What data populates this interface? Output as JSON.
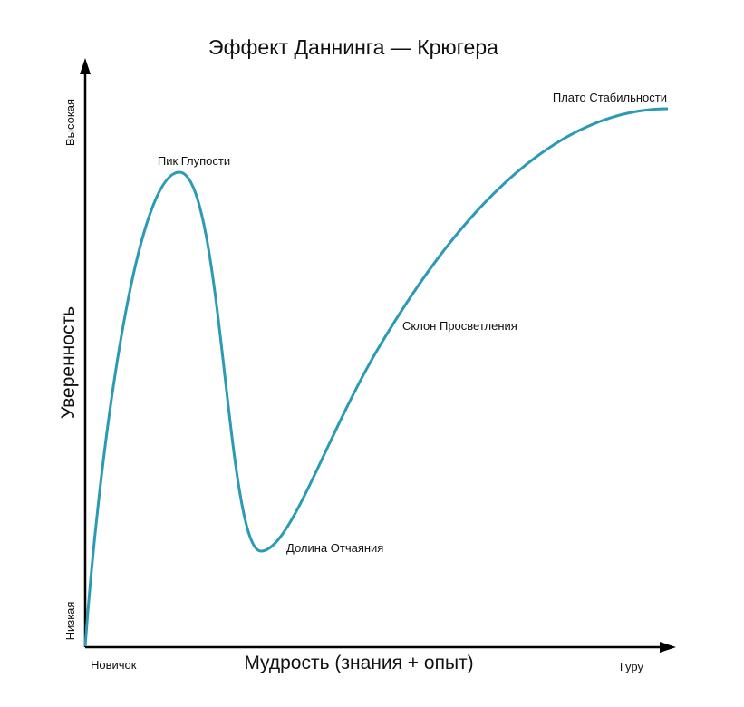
{
  "title": "Эффект Даннинга — Крюгера",
  "x_axis": {
    "label": "Мудрость (знания + опыт)",
    "low": "Новичок",
    "high": "Гуру"
  },
  "y_axis": {
    "label": "Уверенность",
    "low": "Низкая",
    "high": "Высокая"
  },
  "annotations": [
    "Пик Глупости",
    "Долина Отчаяния",
    "Склон Просветления",
    "Плато Стабильности"
  ]
}
